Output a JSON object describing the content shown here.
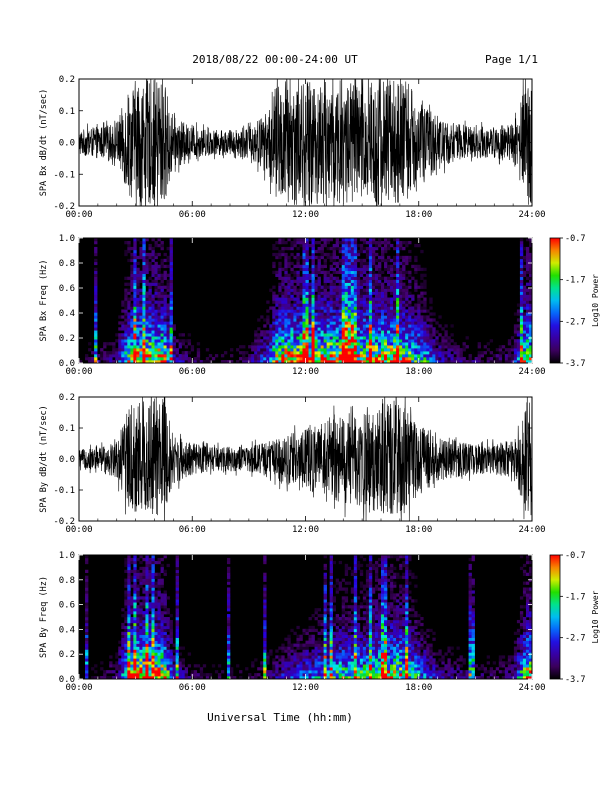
{
  "header": {
    "title": "2018/08/22  00:00-24:00 UT",
    "page": "Page 1/1"
  },
  "xlabel": "Universal Time (hh:mm)",
  "chart_data": [
    {
      "type": "line",
      "ylabel": "SPA Bx dB/dt (nT/sec)",
      "xlim": [
        0,
        24
      ],
      "ylim": [
        -0.2,
        0.2
      ],
      "xticks": [
        "00:00",
        "06:00",
        "12:00",
        "18:00",
        "24:00"
      ],
      "yticks": [
        "-0.2",
        "-0.1",
        "0.0",
        "0.1",
        "0.2"
      ],
      "series": [
        {
          "x": [
            0,
            1,
            2,
            2.5,
            3,
            3.5,
            4,
            4.5,
            5,
            6,
            7,
            8,
            9,
            10,
            10.5,
            11,
            12,
            13,
            14,
            15,
            16,
            17,
            18,
            19,
            20,
            21,
            22,
            23,
            23.8,
            24
          ],
          "values": [
            0.04,
            0.05,
            0.06,
            0.15,
            0.2,
            0.2,
            0.2,
            0.2,
            0.08,
            0.05,
            0.04,
            0.04,
            0.05,
            0.1,
            0.18,
            0.2,
            0.2,
            0.2,
            0.2,
            0.2,
            0.2,
            0.2,
            0.15,
            0.08,
            0.06,
            0.05,
            0.05,
            0.06,
            0.2,
            0.2
          ]
        }
      ]
    },
    {
      "type": "heatmap",
      "ylabel": "SPA Bx Freq (Hz)",
      "xlim": [
        0,
        24
      ],
      "ylim": [
        0,
        1.0
      ],
      "xticks": [
        "00:00",
        "06:00",
        "12:00",
        "18:00",
        "24:00"
      ],
      "yticks": [
        "0.0",
        "0.2",
        "0.4",
        "0.6",
        "0.8",
        "1.0"
      ],
      "colorbar": {
        "label": "Log10 Power",
        "range": [
          -3.7,
          -0.7
        ],
        "ticks": [
          "-0.7",
          "-1.7",
          "-2.7",
          "-3.7"
        ]
      },
      "series": [
        {
          "x": [
            0,
            1,
            2,
            2.5,
            3,
            3.5,
            4,
            4.5,
            5,
            6,
            7,
            8,
            9,
            10,
            10.5,
            11,
            12,
            13,
            14,
            15,
            16,
            17,
            18,
            19,
            20,
            21,
            22,
            23,
            23.8,
            24
          ],
          "values": [
            0.04,
            0.05,
            0.06,
            0.15,
            0.2,
            0.2,
            0.2,
            0.2,
            0.08,
            0.05,
            0.04,
            0.04,
            0.05,
            0.1,
            0.18,
            0.2,
            0.2,
            0.2,
            0.2,
            0.2,
            0.2,
            0.2,
            0.15,
            0.08,
            0.06,
            0.05,
            0.05,
            0.06,
            0.2,
            0.2
          ]
        }
      ]
    },
    {
      "type": "line",
      "ylabel": "SPA By dB/dt (nT/sec)",
      "xlim": [
        0,
        24
      ],
      "ylim": [
        -0.2,
        0.2
      ],
      "xticks": [
        "00:00",
        "06:00",
        "12:00",
        "18:00",
        "24:00"
      ],
      "yticks": [
        "-0.2",
        "-0.1",
        "0.0",
        "0.1",
        "0.2"
      ],
      "series": [
        {
          "x": [
            0,
            1,
            2,
            2.5,
            3,
            3.5,
            4,
            4.5,
            5,
            6,
            7,
            8,
            9,
            10,
            11,
            12,
            13,
            14,
            15,
            16,
            17,
            18,
            19,
            20,
            21,
            22,
            23,
            23.8,
            24
          ],
          "values": [
            0.03,
            0.04,
            0.06,
            0.15,
            0.2,
            0.2,
            0.2,
            0.2,
            0.08,
            0.05,
            0.04,
            0.04,
            0.04,
            0.06,
            0.08,
            0.1,
            0.12,
            0.15,
            0.15,
            0.18,
            0.18,
            0.12,
            0.07,
            0.06,
            0.05,
            0.05,
            0.06,
            0.2,
            0.2
          ]
        }
      ]
    },
    {
      "type": "heatmap",
      "ylabel": "SPA By Freq (Hz)",
      "xlim": [
        0,
        24
      ],
      "ylim": [
        0,
        1.0
      ],
      "xticks": [
        "00:00",
        "06:00",
        "12:00",
        "18:00",
        "24:00"
      ],
      "yticks": [
        "0.0",
        "0.2",
        "0.4",
        "0.6",
        "0.8",
        "1.0"
      ],
      "colorbar": {
        "label": "Log10 Power",
        "range": [
          -3.7,
          -0.7
        ],
        "ticks": [
          "-0.7",
          "-1.7",
          "-2.7",
          "-3.7"
        ]
      },
      "series": [
        {
          "x": [
            0,
            1,
            2,
            2.5,
            3,
            3.5,
            4,
            4.5,
            5,
            6,
            7,
            8,
            9,
            10,
            11,
            12,
            13,
            14,
            15,
            16,
            17,
            18,
            19,
            20,
            21,
            22,
            23,
            23.8,
            24
          ],
          "values": [
            0.03,
            0.04,
            0.06,
            0.15,
            0.2,
            0.2,
            0.2,
            0.2,
            0.08,
            0.05,
            0.04,
            0.04,
            0.04,
            0.06,
            0.08,
            0.1,
            0.12,
            0.15,
            0.15,
            0.18,
            0.18,
            0.12,
            0.07,
            0.06,
            0.05,
            0.05,
            0.06,
            0.2,
            0.2
          ]
        }
      ]
    }
  ]
}
